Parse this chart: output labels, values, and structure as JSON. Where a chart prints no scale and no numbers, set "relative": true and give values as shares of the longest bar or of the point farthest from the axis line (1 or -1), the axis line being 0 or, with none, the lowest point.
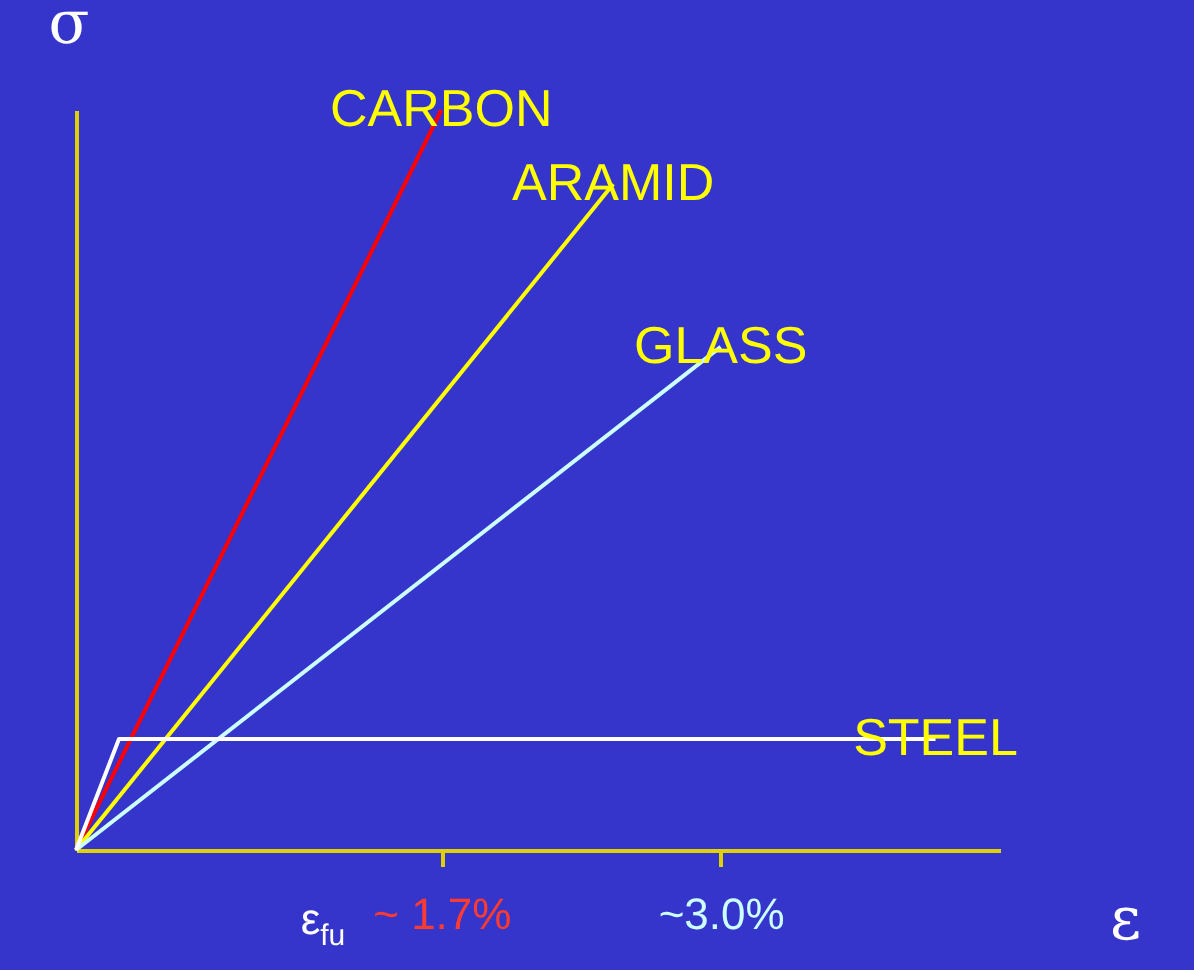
{
  "chart_data": {
    "type": "line",
    "relative": true,
    "xlabel": "ε",
    "ylabel": "σ",
    "series": [
      {
        "name": "CARBON",
        "color": "#ff0000",
        "x": [
          0,
          1.7
        ],
        "values": [
          0,
          1
        ]
      },
      {
        "name": "ARAMID",
        "color": "#ffff00",
        "x": [
          0,
          2.5
        ],
        "values": [
          0,
          0.9
        ]
      },
      {
        "name": "GLASS",
        "color": "#ccffff",
        "x": [
          0,
          3.0
        ],
        "values": [
          0,
          0.68
        ]
      },
      {
        "name": "STEEL",
        "color": "#ffffff",
        "x": [
          0,
          0.2,
          4.0
        ],
        "values": [
          0,
          0.15,
          0.15
        ]
      }
    ],
    "xlim": [
      0,
      4.3
    ],
    "xticks": [
      {
        "value": 1.7,
        "label": "~ 1.7%"
      },
      {
        "value": 3.0,
        "label": "~3.0%"
      }
    ],
    "tick_labels": "x",
    "grid": false,
    "marker": "none",
    "line_style": "solid",
    "annotations": [
      "ε$_{fu}$"
    ]
  }
}
